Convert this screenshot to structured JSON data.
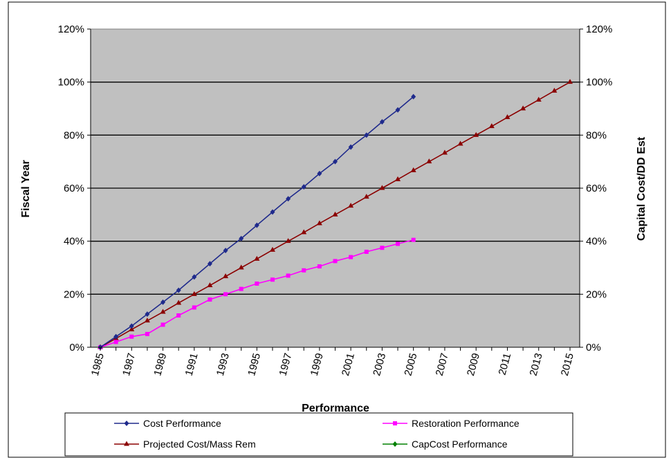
{
  "chart_data": {
    "type": "line",
    "title": "",
    "xlabel": "Performance",
    "ylabel_left": "Fiscal Year",
    "ylabel_right": "Capital Cost/DD Est",
    "x_range": [
      1985,
      2015
    ],
    "x_tick_labels": [
      "1985",
      "1987",
      "1989",
      "1991",
      "1993",
      "1995",
      "1997",
      "1999",
      "2001",
      "2003",
      "2005",
      "2007",
      "2009",
      "2011",
      "2013",
      "2015"
    ],
    "y_range": [
      0,
      1.2
    ],
    "y_tick_labels": [
      "0%",
      "20%",
      "40%",
      "60%",
      "80%",
      "100%",
      "120%"
    ],
    "plot_background": "#c0c0c0",
    "grid": "horizontal",
    "legend_position": "bottom",
    "series": [
      {
        "name": "Cost Performance",
        "color": "#1f2a8c",
        "marker": "diamond",
        "x": [
          1985,
          1986,
          1987,
          1988,
          1989,
          1990,
          1991,
          1992,
          1993,
          1994,
          1995,
          1996,
          1997,
          1998,
          1999,
          2000,
          2001,
          2002,
          2003,
          2004,
          2005
        ],
        "y": [
          0.0,
          0.04,
          0.08,
          0.125,
          0.17,
          0.215,
          0.265,
          0.315,
          0.365,
          0.41,
          0.46,
          0.51,
          0.56,
          0.605,
          0.655,
          0.7,
          0.755,
          0.8,
          0.85,
          0.895,
          0.945
        ]
      },
      {
        "name": "Restoration Performance",
        "color": "#ff00ff",
        "marker": "square",
        "x": [
          1985,
          1986,
          1987,
          1988,
          1989,
          1990,
          1991,
          1992,
          1993,
          1994,
          1995,
          1996,
          1997,
          1998,
          1999,
          2000,
          2001,
          2002,
          2003,
          2004,
          2005
        ],
        "y": [
          0.0,
          0.02,
          0.04,
          0.05,
          0.085,
          0.12,
          0.15,
          0.18,
          0.2,
          0.22,
          0.24,
          0.255,
          0.27,
          0.29,
          0.305,
          0.325,
          0.34,
          0.36,
          0.375,
          0.39,
          0.405
        ]
      },
      {
        "name": "Projected Cost/Mass Rem",
        "color": "#8b0000",
        "marker": "triangle",
        "x": [
          1985,
          1986,
          1987,
          1988,
          1989,
          1990,
          1991,
          1992,
          1993,
          1994,
          1995,
          1996,
          1997,
          1998,
          1999,
          2000,
          2001,
          2002,
          2003,
          2004,
          2005,
          2006,
          2007,
          2008,
          2009,
          2010,
          2011,
          2012,
          2013,
          2014,
          2015
        ],
        "y": [
          0.0,
          0.033,
          0.067,
          0.1,
          0.133,
          0.167,
          0.2,
          0.233,
          0.267,
          0.3,
          0.333,
          0.367,
          0.4,
          0.433,
          0.467,
          0.5,
          0.533,
          0.567,
          0.6,
          0.633,
          0.667,
          0.7,
          0.733,
          0.767,
          0.8,
          0.833,
          0.867,
          0.9,
          0.933,
          0.967,
          1.0
        ]
      },
      {
        "name": "CapCost Performance",
        "color": "#008000",
        "marker": "diamond",
        "x": [],
        "y": []
      }
    ]
  }
}
